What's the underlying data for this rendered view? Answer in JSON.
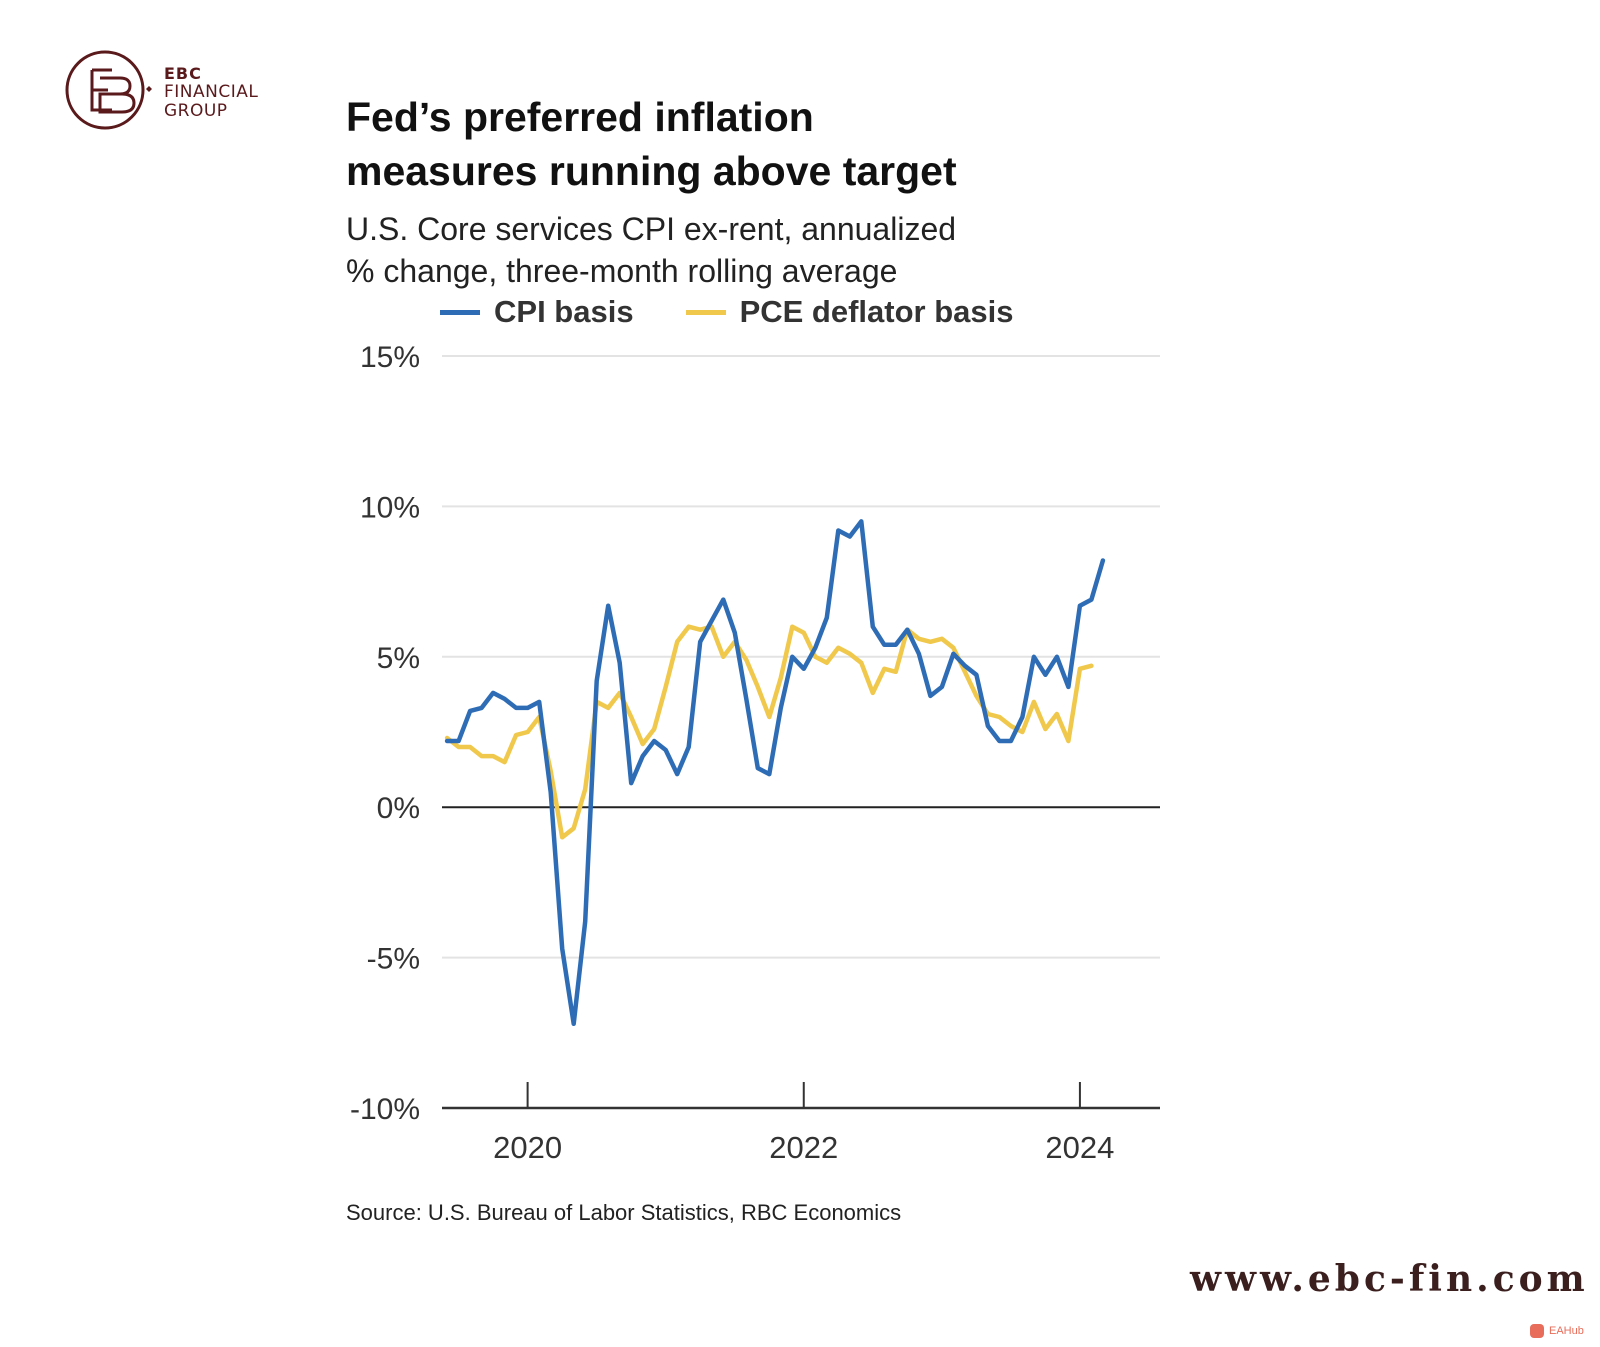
{
  "brand": {
    "logo_line1": "EBC",
    "logo_line2": "FINANCIAL",
    "logo_line3": "GROUP",
    "website": "www.ebc-fin.com",
    "watermark": "EAHub",
    "color": "#5a1a1c"
  },
  "chart_data": {
    "type": "line",
    "title": "Fed’s preferred inflation measures running above target",
    "title_line1": "Fed’s preferred inflation",
    "title_line2": "measures running above target",
    "subtitle_line1": "U.S. Core services CPI ex-rent, annualized",
    "subtitle_line2": "% change, three-month rolling average",
    "xlabel": "",
    "ylabel": "",
    "ylim": [
      -10,
      15
    ],
    "yticks": [
      15,
      10,
      5,
      0,
      -5,
      -10
    ],
    "ytick_labels": [
      "15%",
      "10%",
      "5%",
      "0%",
      "-5%",
      "-10%"
    ],
    "xlim": [
      2019.38,
      2024.58
    ],
    "xticks": [
      2020,
      2022,
      2024
    ],
    "xtick_labels": [
      "2020",
      "2022",
      "2024"
    ],
    "x_start": 2019.417,
    "x_step": 0.08333,
    "series": [
      {
        "name": "CPI basis",
        "color": "#2e6db5",
        "values": [
          2.2,
          2.2,
          3.2,
          3.3,
          3.8,
          3.6,
          3.3,
          3.3,
          3.5,
          0.5,
          -4.7,
          -7.2,
          -3.8,
          4.2,
          6.7,
          4.8,
          0.8,
          1.7,
          2.2,
          1.9,
          1.1,
          2.0,
          5.5,
          6.2,
          6.9,
          5.8,
          3.6,
          1.3,
          1.1,
          3.3,
          5.0,
          4.6,
          5.3,
          6.3,
          9.2,
          9.0,
          9.5,
          6.0,
          5.4,
          5.4,
          5.9,
          5.1,
          3.7,
          4.0,
          5.1,
          4.7,
          4.4,
          2.7,
          2.2,
          2.2,
          3.0,
          5.0,
          4.4,
          5.0,
          4.0,
          6.7,
          6.9,
          8.2
        ]
      },
      {
        "name": "PCE deflator basis",
        "color": "#f0c84b",
        "values": [
          2.3,
          2.0,
          2.0,
          1.7,
          1.7,
          1.5,
          2.4,
          2.5,
          3.0,
          1.2,
          -1.0,
          -0.7,
          0.6,
          3.5,
          3.3,
          3.8,
          3.0,
          2.1,
          2.6,
          4.0,
          5.5,
          6.0,
          5.9,
          6.0,
          5.0,
          5.5,
          4.9,
          4.0,
          3.0,
          4.3,
          6.0,
          5.8,
          5.0,
          4.8,
          5.3,
          5.1,
          4.8,
          3.8,
          4.6,
          4.5,
          5.9,
          5.6,
          5.5,
          5.6,
          5.3,
          4.5,
          3.7,
          3.1,
          3.0,
          2.7,
          2.5,
          3.5,
          2.6,
          3.1,
          2.2,
          4.6,
          4.7
        ]
      }
    ]
  },
  "source": "Source: U.S. Bureau of Labor Statistics, RBC Economics"
}
